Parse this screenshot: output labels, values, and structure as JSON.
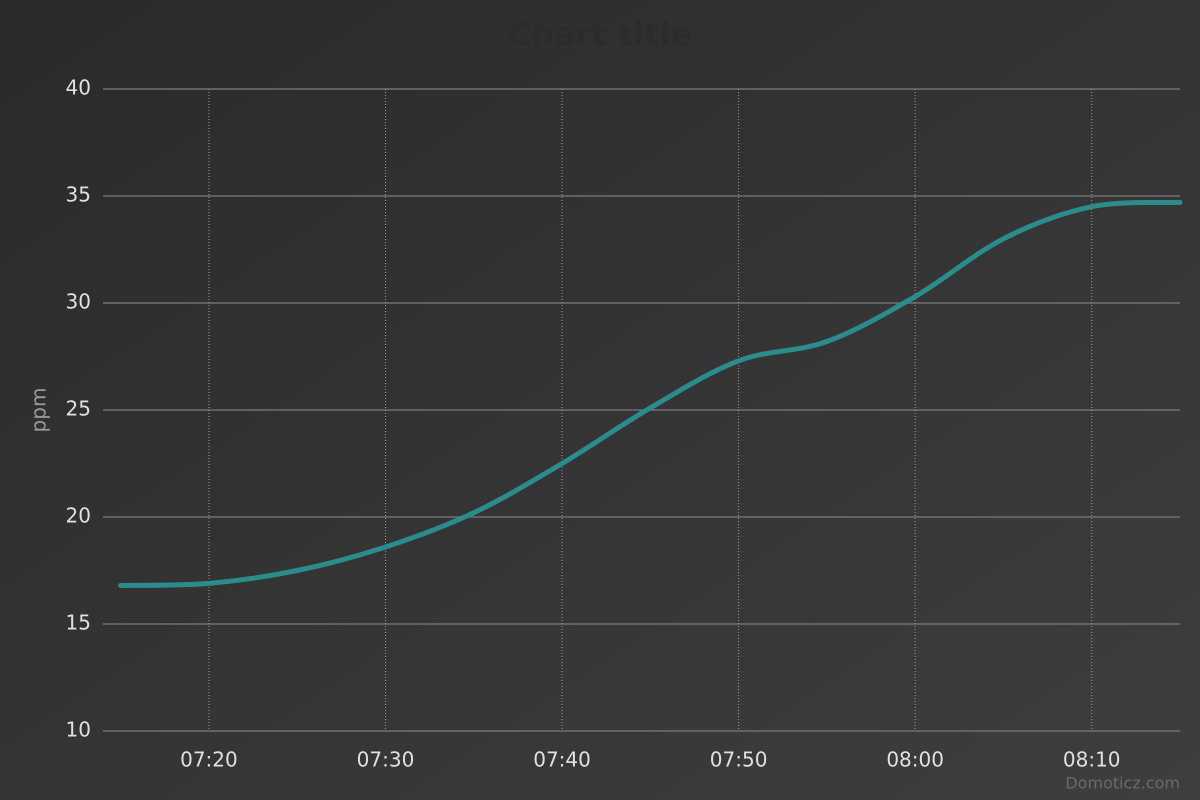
{
  "chart_data": {
    "type": "line",
    "title": "Chart title",
    "y_label": "ppm",
    "credits": "Domoticz.com",
    "x": [
      "07:15",
      "07:20",
      "07:25",
      "07:30",
      "07:35",
      "07:40",
      "07:45",
      "07:50",
      "07:55",
      "08:00",
      "08:05",
      "08:10",
      "08:15"
    ],
    "series": [
      {
        "name": "ppm",
        "color": "#2b8c8c",
        "values": [
          16.8,
          16.9,
          17.5,
          18.6,
          20.2,
          22.5,
          25.1,
          27.3,
          28.2,
          30.3,
          33.0,
          34.5,
          34.7
        ]
      }
    ],
    "xlim": [
      "07:14",
      "08:15"
    ],
    "xticks": [
      "07:20",
      "07:30",
      "07:40",
      "07:50",
      "08:00",
      "08:10"
    ],
    "ylim": [
      10,
      40
    ],
    "yticks": [
      10,
      15,
      20,
      25,
      30,
      35,
      40
    ],
    "grid": true
  }
}
